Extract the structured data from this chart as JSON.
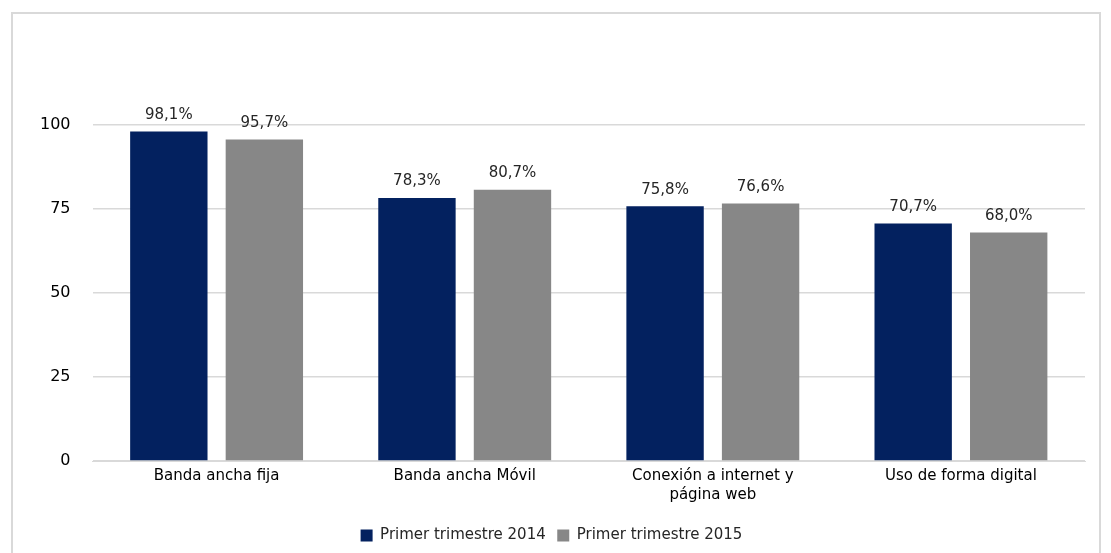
{
  "chart_data": {
    "type": "bar",
    "categories": [
      "Banda ancha fija",
      "Banda ancha Móvil",
      "Conexión a internet y página web",
      "Uso de forma digital"
    ],
    "series": [
      {
        "name": "Primer trimestre 2014",
        "color": "#03215f",
        "values": [
          98.1,
          78.3,
          75.8,
          70.7
        ],
        "value_labels": [
          "98,1%",
          "78,3%",
          "75,8%",
          "70,7%"
        ]
      },
      {
        "name": "Primer trimestre 2015",
        "color": "#878787",
        "values": [
          95.7,
          80.7,
          76.6,
          68.0
        ],
        "value_labels": [
          "95,7%",
          "80,7%",
          "76,6%",
          "68,0%"
        ]
      }
    ],
    "ylim": [
      0,
      100
    ],
    "yticks": [
      0,
      25,
      50,
      75,
      100
    ],
    "grid": "y",
    "legend": "bottom"
  }
}
